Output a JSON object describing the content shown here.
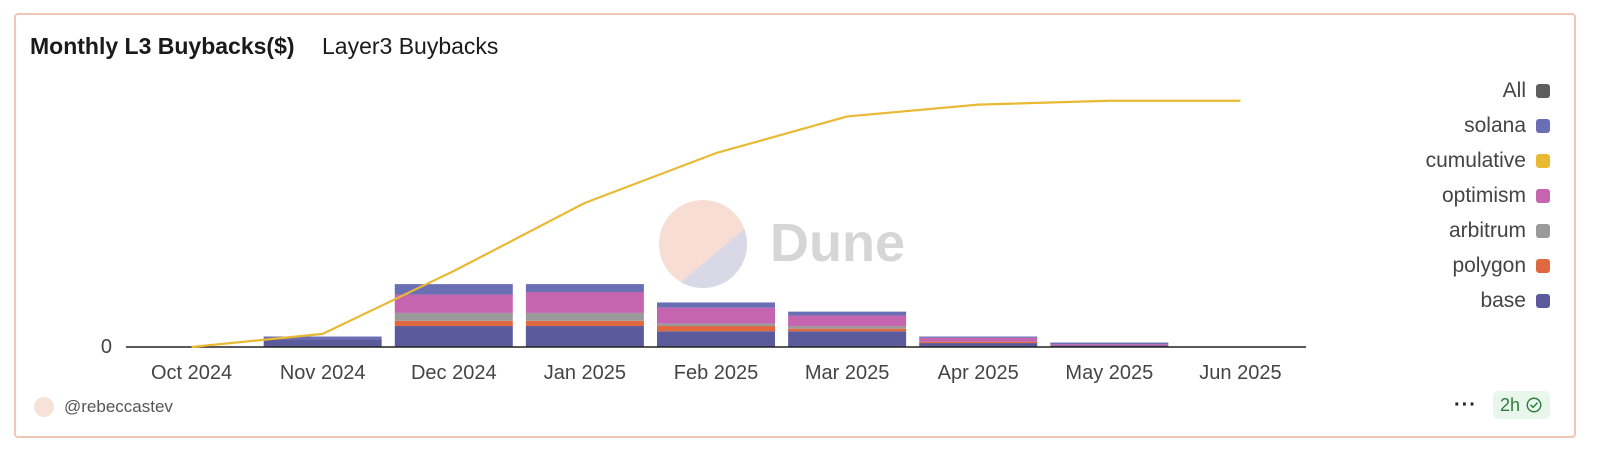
{
  "header": {
    "title": "Monthly L3 Buybacks($)",
    "subtitle": "Layer3 Buybacks"
  },
  "watermark": {
    "text": "Dune"
  },
  "footer": {
    "username": "@rebeccastev",
    "age": "2h",
    "more": "···"
  },
  "chart_data": {
    "type": "bar",
    "stacked": true,
    "categories": [
      "Oct 2024",
      "Nov 2024",
      "Dec 2024",
      "Jan 2025",
      "Feb 2025",
      "Mar 2025",
      "Apr 2025",
      "May 2025",
      "Jun 2025"
    ],
    "yticks": [
      {
        "value": 0,
        "label": "0"
      }
    ],
    "ylim": [
      0,
      100
    ],
    "series": [
      {
        "name": "base",
        "color": "#5a5a9c",
        "values": [
          0,
          3,
          8,
          8,
          6,
          6,
          1.5,
          0.6,
          0
        ]
      },
      {
        "name": "polygon",
        "color": "#e0683f",
        "values": [
          0,
          0,
          2,
          2,
          2,
          1,
          0.5,
          0,
          0
        ]
      },
      {
        "name": "arbitrum",
        "color": "#9a9a9a",
        "values": [
          0,
          0,
          3,
          3,
          1,
          1,
          0,
          0,
          0
        ]
      },
      {
        "name": "optimism",
        "color": "#c565b0",
        "values": [
          0,
          0,
          7,
          8,
          6,
          4,
          1.5,
          0.5,
          0
        ]
      },
      {
        "name": "solana",
        "color": "#6a6eb4",
        "values": [
          0,
          1,
          4,
          3,
          2,
          1.5,
          0.5,
          0.6,
          0
        ]
      }
    ],
    "line": {
      "name": "cumulative",
      "color": "#e9b934",
      "values": [
        0,
        5,
        29,
        55,
        74,
        88,
        92.5,
        94,
        94
      ]
    },
    "legend": [
      {
        "name": "All",
        "color": "#5e5e5e"
      },
      {
        "name": "solana",
        "color": "#6a6eb4"
      },
      {
        "name": "cumulative",
        "color": "#e9b934"
      },
      {
        "name": "optimism",
        "color": "#c565b0"
      },
      {
        "name": "arbitrum",
        "color": "#9a9a9a"
      },
      {
        "name": "polygon",
        "color": "#e0683f"
      },
      {
        "name": "base",
        "color": "#5a5a9c"
      }
    ],
    "legend_position": "right"
  }
}
